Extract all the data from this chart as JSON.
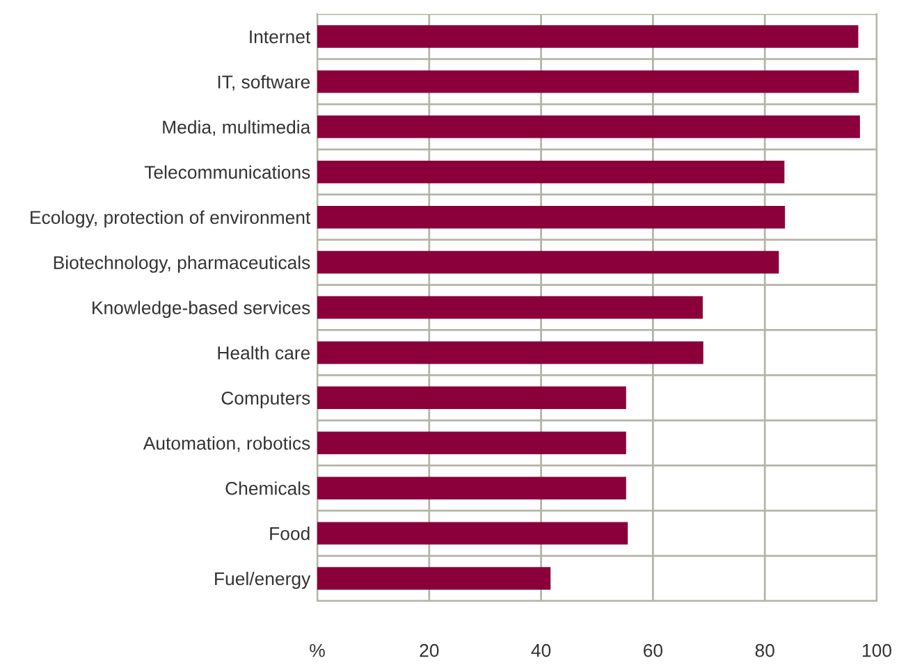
{
  "chart_data": {
    "type": "bar",
    "orientation": "horizontal",
    "categories": [
      "Internet",
      "IT, software",
      "Media, multimedia",
      "Telecommunications",
      "Ecology, protection of environment",
      "Biotechnology, pharmaceuticals",
      "Knowledge-based services",
      "Health care",
      "Computers",
      "Automation, robotics",
      "Chemicals",
      "Food",
      "Fuel/energy"
    ],
    "values": [
      96.7,
      96.8,
      97,
      83.5,
      83.6,
      82.5,
      68.9,
      69,
      55.2,
      55.2,
      55.2,
      55.5,
      41.7
    ],
    "color": "#8b003a",
    "xlim": [
      0,
      100
    ],
    "xticks": [
      {
        "value": 0,
        "label": "%"
      },
      20,
      40,
      60,
      80,
      100
    ],
    "grid": true
  }
}
